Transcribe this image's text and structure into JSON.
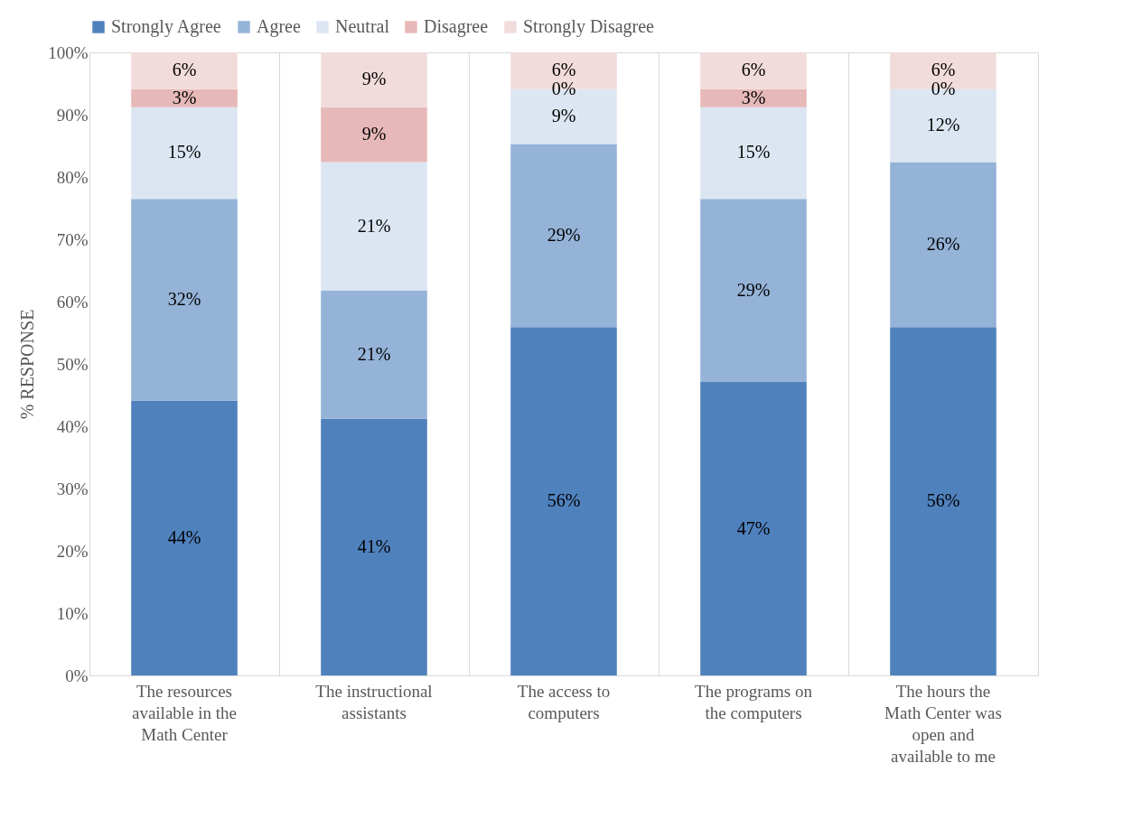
{
  "chart_data": {
    "type": "bar",
    "stacked": true,
    "ylabel": "% RESPONSE",
    "categories": [
      "The resources available in the Math Center",
      "The instructional assistants",
      "The access to computers",
      "The programs on the computers",
      "The hours the Math Center was open and available to me"
    ],
    "series": [
      {
        "name": "Strongly Agree",
        "color": "#4f81bd",
        "values": [
          44.1,
          41.2,
          55.9,
          47.1,
          55.9
        ],
        "value_labels": [
          "44%",
          "41%",
          "56%",
          "47%",
          "56%"
        ]
      },
      {
        "name": "Agree",
        "color": "#95b3d7",
        "values": [
          32.4,
          20.6,
          29.4,
          29.4,
          26.5
        ],
        "value_labels": [
          "32%",
          "21%",
          "29%",
          "29%",
          "26%"
        ]
      },
      {
        "name": "Neutral",
        "color": "#dce6f2",
        "values": [
          14.7,
          20.6,
          8.8,
          14.7,
          11.7
        ],
        "value_labels": [
          "15%",
          "21%",
          "9%",
          "15%",
          "12%"
        ]
      },
      {
        "name": "Disagree",
        "color": "#e6b9b8",
        "values": [
          2.9,
          8.8,
          0,
          2.9,
          0
        ],
        "value_labels": [
          "3%",
          "9%",
          "0%",
          "3%",
          "0%"
        ]
      },
      {
        "name": "Strongly Disagree",
        "color": "#f2dcdb",
        "values": [
          5.9,
          8.8,
          5.9,
          5.9,
          5.9
        ],
        "value_labels": [
          "6%",
          "9%",
          "6%",
          "6%",
          "6%"
        ]
      }
    ],
    "ylim": [
      0,
      100
    ],
    "yticks": [
      {
        "value": 0,
        "label": "0%"
      },
      {
        "value": 10,
        "label": "10%"
      },
      {
        "value": 20,
        "label": "20%"
      },
      {
        "value": 30,
        "label": "30%"
      },
      {
        "value": 40,
        "label": "40%"
      },
      {
        "value": 50,
        "label": "50%"
      },
      {
        "value": 60,
        "label": "60%"
      },
      {
        "value": 70,
        "label": "70%"
      },
      {
        "value": 80,
        "label": "80%"
      },
      {
        "value": 90,
        "label": "90%"
      },
      {
        "value": 100,
        "label": "100%"
      }
    ],
    "grid": "x",
    "legend": "top"
  }
}
